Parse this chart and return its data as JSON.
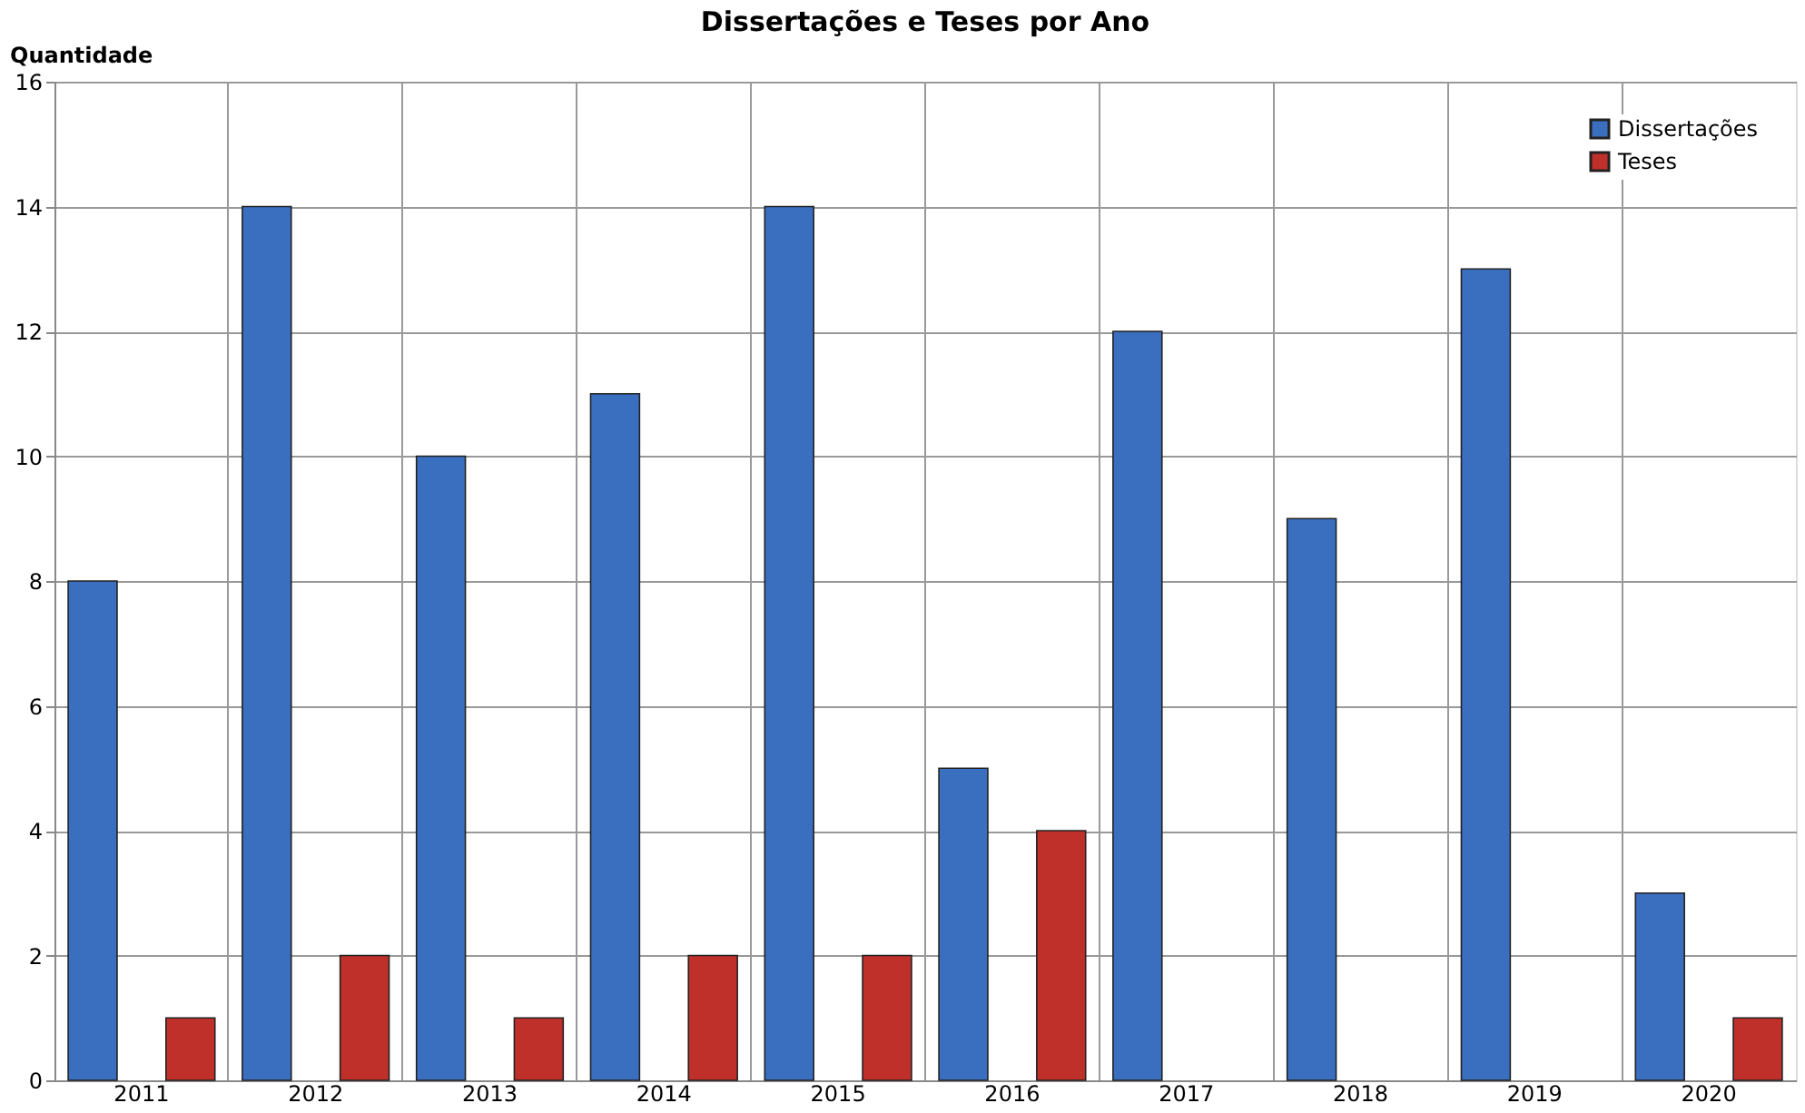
{
  "chart_data": {
    "type": "bar",
    "title": "Dissertações e Teses por Ano",
    "ylabel": "Quantidade",
    "categories": [
      "2011",
      "2012",
      "2013",
      "2014",
      "2015",
      "2016",
      "2017",
      "2018",
      "2019",
      "2020"
    ],
    "series": [
      {
        "name": "Dissertações",
        "color": "#3a6fc0",
        "values": [
          8,
          14,
          10,
          11,
          14,
          5,
          12,
          9,
          13,
          3
        ]
      },
      {
        "name": "Teses",
        "color": "#c0302b",
        "values": [
          1,
          2,
          1,
          2,
          2,
          4,
          null,
          null,
          null,
          1
        ]
      }
    ],
    "ylim": [
      0,
      16
    ],
    "yticks": [
      0,
      2,
      4,
      6,
      8,
      10,
      12,
      14,
      16
    ],
    "grid": true,
    "legend": "top right"
  }
}
